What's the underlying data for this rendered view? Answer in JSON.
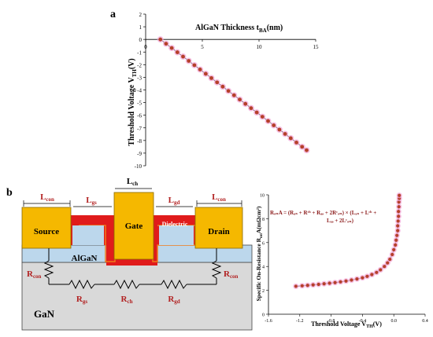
{
  "panel_a": {
    "label": "a",
    "xlabel_main": "AlGaN Thickness t",
    "xlabel_sub": "BA",
    "xlabel_tail": "(nm)",
    "ylabel_main": "Threshold Voltage V",
    "ylabel_sub": "TH",
    "ylabel_tail": "(V)",
    "colors": {
      "marker": "#b5402a",
      "halo": "#f2a5d8",
      "line": "#555555"
    }
  },
  "panel_b": {
    "label": "b",
    "regions": {
      "source": "Source",
      "gate": "Gate",
      "drain": "Drain",
      "dielectric": "Dielectric",
      "algan": "AlGaN",
      "gan": "GaN"
    },
    "dims": [
      {
        "main": "L",
        "sub": "con"
      },
      {
        "main": "L",
        "sub": "gs"
      },
      {
        "main": "L",
        "sub": "ch"
      },
      {
        "main": "L",
        "sub": "gd"
      },
      {
        "main": "L",
        "sub": "con"
      }
    ],
    "resistors": [
      {
        "main": "R",
        "sub": "con"
      },
      {
        "main": "R",
        "sub": "gs"
      },
      {
        "main": "R",
        "sub": "ch"
      },
      {
        "main": "R",
        "sub": "gd"
      },
      {
        "main": "R",
        "sub": "con"
      }
    ],
    "colors": {
      "contact": "#f5b800",
      "contact_edge": "#8a6a00",
      "dielectric": "#e01b1b",
      "algan": "#bcd7ec",
      "gan": "#d9d9d9",
      "label_red": "#b22222"
    }
  },
  "panel_c": {
    "xlabel_main": "Threshold Voltage V",
    "xlabel_sub": "TH",
    "xlabel_tail": "(V)",
    "ylabel_main": "Specific On-Resistance R",
    "ylabel_sub": "on",
    "ylabel_tail": "A(mΩcm²)",
    "formula_line1": "RₒₙA = (Rₐₛ + Rᶜʰ + Rₐₔ + 2Rᶜₒₙ) × (Lₐₛ + Lᶜʰ +",
    "formula_line2": "Lₐₔ + 2Lᶜₒₙ)",
    "colors": {
      "marker": "#b5402a",
      "halo": "#f2a5d8",
      "line": "#555555"
    }
  },
  "chart_data": [
    {
      "type": "scatter",
      "title": "",
      "xlabel": "AlGaN Thickness t_BA (nm)",
      "ylabel": "Threshold Voltage V_TH (V)",
      "xlim": [
        0,
        15
      ],
      "ylim": [
        -10,
        2
      ],
      "xticks": [
        0,
        5,
        10,
        15
      ],
      "yticks": [
        -10,
        -9,
        -8,
        -7,
        -6,
        -5,
        -4,
        -3,
        -2,
        -1,
        0,
        1,
        2
      ],
      "grid": false,
      "x": [
        1.3,
        1.8,
        2.3,
        2.8,
        3.3,
        3.8,
        4.3,
        4.8,
        5.3,
        5.8,
        6.3,
        6.8,
        7.3,
        7.8,
        8.3,
        8.8,
        9.3,
        9.8,
        10.3,
        10.8,
        11.3,
        11.8,
        12.3,
        12.8,
        13.3,
        13.8,
        14.2
      ],
      "y": [
        0.0,
        -0.34,
        -0.68,
        -1.02,
        -1.36,
        -1.7,
        -2.04,
        -2.38,
        -2.72,
        -3.06,
        -3.4,
        -3.74,
        -4.08,
        -4.42,
        -4.76,
        -5.1,
        -5.44,
        -5.78,
        -6.12,
        -6.46,
        -6.8,
        -7.14,
        -7.48,
        -7.82,
        -8.16,
        -8.5,
        -8.77
      ]
    },
    {
      "type": "scatter",
      "title": "",
      "xlabel": "Threshold Voltage V_TH (V)",
      "ylabel": "Specific On-Resistance R_on A (mΩcm²)",
      "xlim": [
        -1.6,
        0.4
      ],
      "ylim": [
        0,
        10
      ],
      "xticks": [
        -1.6,
        -1.2,
        -0.8,
        -0.4,
        0.0,
        0.4
      ],
      "yticks": [
        0,
        2,
        4,
        6,
        8,
        10
      ],
      "grid": false,
      "x": [
        -1.25,
        -1.17,
        -1.1,
        -1.03,
        -0.96,
        -0.89,
        -0.82,
        -0.75,
        -0.68,
        -0.61,
        -0.54,
        -0.47,
        -0.4,
        -0.34,
        -0.28,
        -0.22,
        -0.17,
        -0.12,
        -0.08,
        -0.05,
        -0.02,
        0.0,
        0.02,
        0.03,
        0.04,
        0.05,
        0.05,
        0.055,
        0.06,
        0.06,
        0.065,
        0.065,
        0.07,
        0.07
      ],
      "y": [
        2.34,
        2.38,
        2.42,
        2.46,
        2.5,
        2.55,
        2.6,
        2.65,
        2.71,
        2.78,
        2.86,
        2.95,
        3.05,
        3.17,
        3.32,
        3.5,
        3.72,
        4.0,
        4.3,
        4.6,
        5.0,
        5.4,
        5.8,
        6.2,
        6.6,
        7.0,
        7.4,
        7.8,
        8.2,
        8.6,
        9.0,
        9.4,
        9.7,
        9.95
      ]
    }
  ]
}
